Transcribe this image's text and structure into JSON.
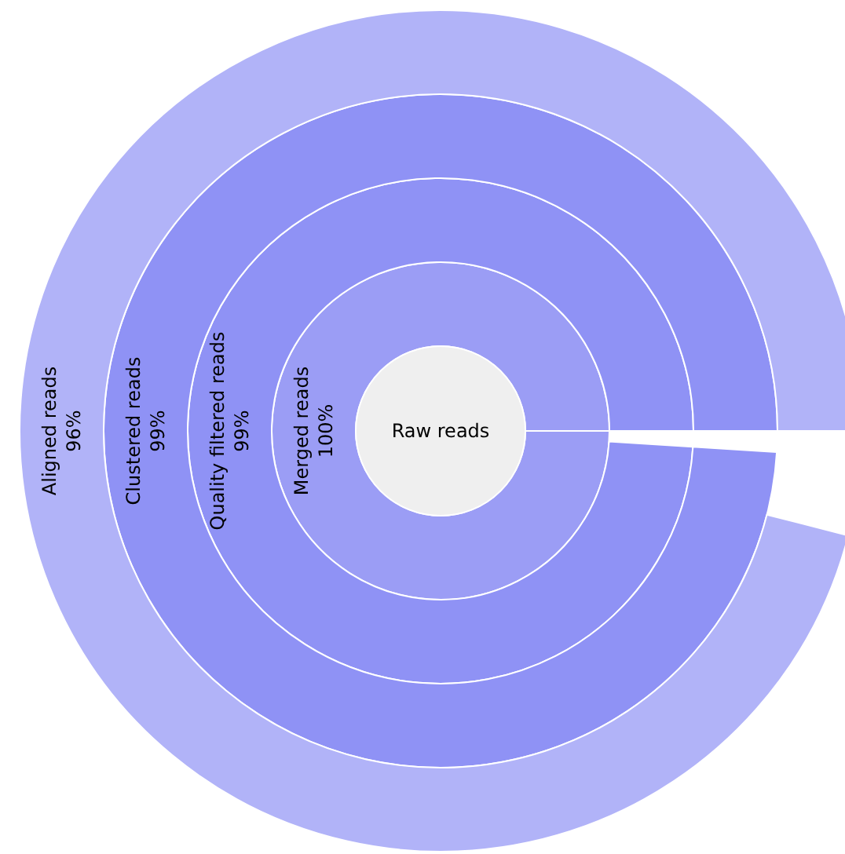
{
  "chart_data": {
    "type": "other",
    "categories": [
      "Merged reads",
      "Quality filtered reads",
      "Clustered reads",
      "Aligned reads"
    ],
    "values": [
      100,
      99,
      99,
      96
    ],
    "value_labels": [
      "100%",
      "99%",
      "99%",
      "96%"
    ],
    "colors": [
      "#9b9df5",
      "#8f92f5",
      "#8f92f5",
      "#b1b3f8"
    ],
    "annotations": [
      "Raw reads"
    ]
  }
}
